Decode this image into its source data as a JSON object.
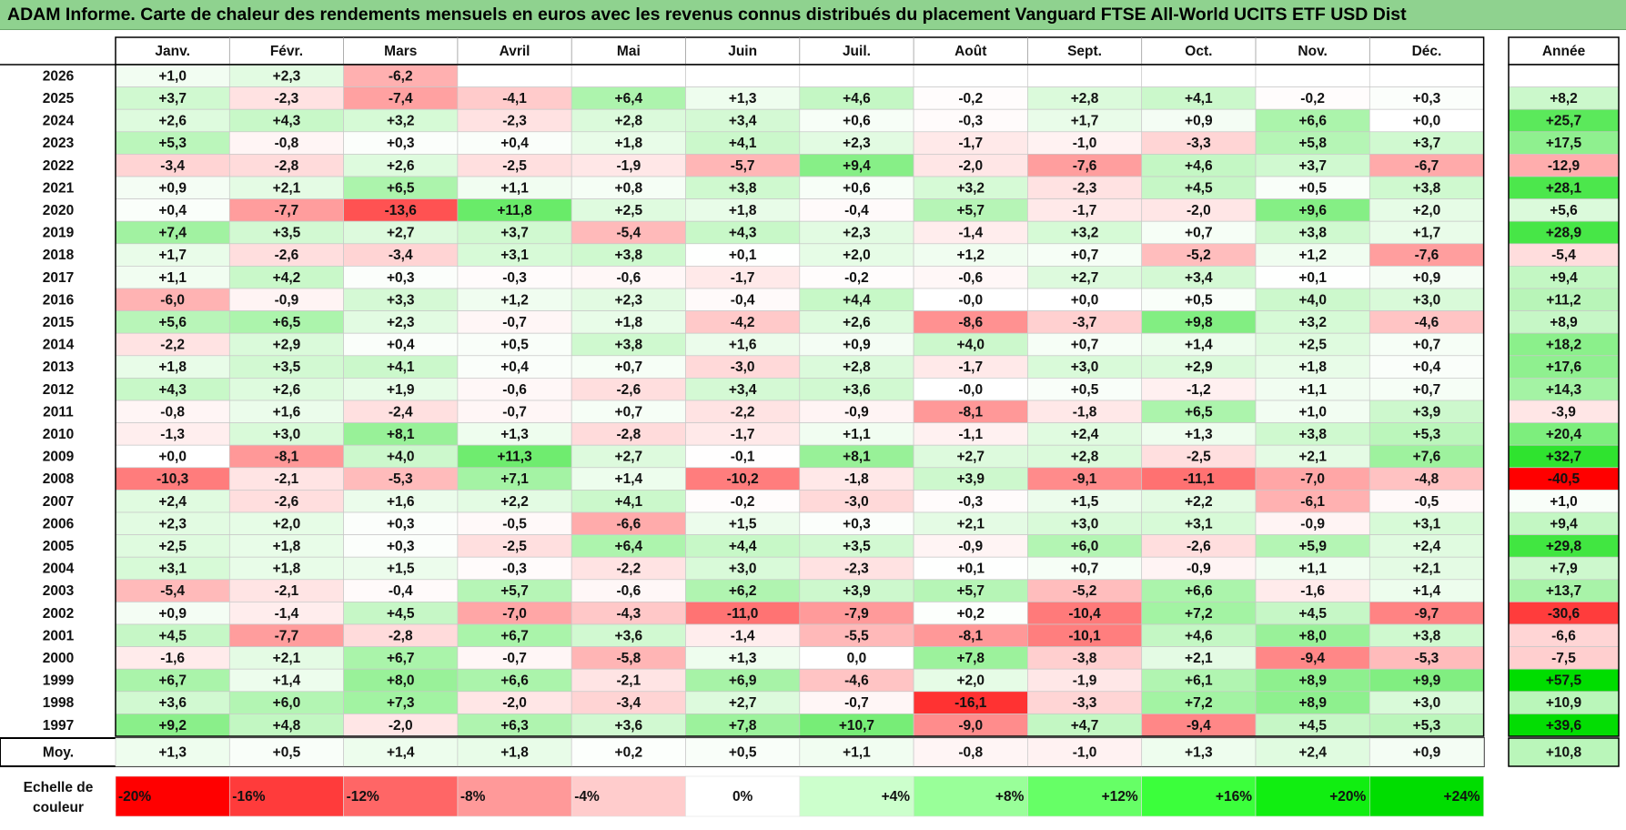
{
  "title": "ADAM Informe. Carte de chaleur des rendements mensuels en euros avec les revenus connus distribués du placement Vanguard FTSE All-World UCITS ETF USD Dist",
  "chart_data": {
    "type": "heatmap",
    "columns": [
      "Janv.",
      "Févr.",
      "Mars",
      "Avril",
      "Mai",
      "Juin",
      "Juil.",
      "Août",
      "Sept.",
      "Oct.",
      "Nov.",
      "Déc."
    ],
    "year_column": "Année",
    "rows": [
      {
        "year": "2026",
        "months": [
          "+1,0",
          "+2,3",
          "-6,2",
          "",
          "",
          "",
          "",
          "",
          "",
          "",
          "",
          ""
        ],
        "total": ""
      },
      {
        "year": "2025",
        "months": [
          "+3,7",
          "-2,3",
          "-7,4",
          "-4,1",
          "+6,4",
          "+1,3",
          "+4,6",
          "-0,2",
          "+2,8",
          "+4,1",
          "-0,2",
          "+0,3"
        ],
        "total": "+8,2"
      },
      {
        "year": "2024",
        "months": [
          "+2,6",
          "+4,3",
          "+3,2",
          "-2,3",
          "+2,8",
          "+3,4",
          "+0,6",
          "-0,3",
          "+1,7",
          "+0,9",
          "+6,6",
          "+0,0"
        ],
        "total": "+25,7"
      },
      {
        "year": "2023",
        "months": [
          "+5,3",
          "-0,8",
          "+0,3",
          "+0,4",
          "+1,8",
          "+4,1",
          "+2,3",
          "-1,7",
          "-1,0",
          "-3,3",
          "+5,8",
          "+3,7"
        ],
        "total": "+17,5"
      },
      {
        "year": "2022",
        "months": [
          "-3,4",
          "-2,8",
          "+2,6",
          "-2,5",
          "-1,9",
          "-5,7",
          "+9,4",
          "-2,0",
          "-7,6",
          "+4,6",
          "+3,7",
          "-6,7"
        ],
        "total": "-12,9"
      },
      {
        "year": "2021",
        "months": [
          "+0,9",
          "+2,1",
          "+6,5",
          "+1,1",
          "+0,8",
          "+3,8",
          "+0,6",
          "+3,2",
          "-2,3",
          "+4,5",
          "+0,5",
          "+3,8"
        ],
        "total": "+28,1"
      },
      {
        "year": "2020",
        "months": [
          "+0,4",
          "-7,7",
          "-13,6",
          "+11,8",
          "+2,5",
          "+1,8",
          "-0,4",
          "+5,7",
          "-1,7",
          "-2,0",
          "+9,6",
          "+2,0"
        ],
        "total": "+5,6"
      },
      {
        "year": "2019",
        "months": [
          "+7,4",
          "+3,5",
          "+2,7",
          "+3,7",
          "-5,4",
          "+4,3",
          "+2,3",
          "-1,4",
          "+3,2",
          "+0,7",
          "+3,8",
          "+1,7"
        ],
        "total": "+28,9"
      },
      {
        "year": "2018",
        "months": [
          "+1,7",
          "-2,6",
          "-3,4",
          "+3,1",
          "+3,8",
          "+0,1",
          "+2,0",
          "+1,2",
          "+0,7",
          "-5,2",
          "+1,2",
          "-7,6"
        ],
        "total": "-5,4"
      },
      {
        "year": "2017",
        "months": [
          "+1,1",
          "+4,2",
          "+0,3",
          "-0,3",
          "-0,6",
          "-1,7",
          "-0,2",
          "-0,6",
          "+2,7",
          "+3,4",
          "+0,1",
          "+0,9"
        ],
        "total": "+9,4"
      },
      {
        "year": "2016",
        "months": [
          "-6,0",
          "-0,9",
          "+3,3",
          "+1,2",
          "+2,3",
          "-0,4",
          "+4,4",
          "-0,0",
          "+0,0",
          "+0,5",
          "+4,0",
          "+3,0"
        ],
        "total": "+11,2"
      },
      {
        "year": "2015",
        "months": [
          "+5,6",
          "+6,5",
          "+2,3",
          "-0,7",
          "+1,8",
          "-4,2",
          "+2,6",
          "-8,6",
          "-3,7",
          "+9,8",
          "+3,2",
          "-4,6"
        ],
        "total": "+8,9"
      },
      {
        "year": "2014",
        "months": [
          "-2,2",
          "+2,9",
          "+0,4",
          "+0,5",
          "+3,8",
          "+1,6",
          "+0,9",
          "+4,0",
          "+0,7",
          "+1,4",
          "+2,5",
          "+0,7"
        ],
        "total": "+18,2"
      },
      {
        "year": "2013",
        "months": [
          "+1,8",
          "+3,5",
          "+4,1",
          "+0,4",
          "+0,7",
          "-3,0",
          "+2,8",
          "-1,7",
          "+3,0",
          "+2,9",
          "+1,8",
          "+0,4"
        ],
        "total": "+17,6"
      },
      {
        "year": "2012",
        "months": [
          "+4,3",
          "+2,6",
          "+1,9",
          "-0,6",
          "-2,6",
          "+3,4",
          "+3,6",
          "-0,0",
          "+0,5",
          "-1,2",
          "+1,1",
          "+0,7"
        ],
        "total": "+14,3"
      },
      {
        "year": "2011",
        "months": [
          "-0,8",
          "+1,6",
          "-2,4",
          "-0,7",
          "+0,7",
          "-2,2",
          "-0,9",
          "-8,1",
          "-1,8",
          "+6,5",
          "+1,0",
          "+3,9"
        ],
        "total": "-3,9"
      },
      {
        "year": "2010",
        "months": [
          "-1,3",
          "+3,0",
          "+8,1",
          "+1,3",
          "-2,8",
          "-1,7",
          "+1,1",
          "-1,1",
          "+2,4",
          "+1,3",
          "+3,8",
          "+5,3"
        ],
        "total": "+20,4"
      },
      {
        "year": "2009",
        "months": [
          "+0,0",
          "-8,1",
          "+4,0",
          "+11,3",
          "+2,7",
          "-0,1",
          "+8,1",
          "+2,7",
          "+2,8",
          "-2,5",
          "+2,1",
          "+7,6"
        ],
        "total": "+32,7"
      },
      {
        "year": "2008",
        "months": [
          "-10,3",
          "-2,1",
          "-5,3",
          "+7,1",
          "+1,4",
          "-10,2",
          "-1,8",
          "+3,9",
          "-9,1",
          "-11,1",
          "-7,0",
          "-4,8"
        ],
        "total": "-40,5"
      },
      {
        "year": "2007",
        "months": [
          "+2,4",
          "-2,6",
          "+1,6",
          "+2,2",
          "+4,1",
          "-0,2",
          "-3,0",
          "-0,3",
          "+1,5",
          "+2,2",
          "-6,1",
          "-0,5"
        ],
        "total": "+1,0"
      },
      {
        "year": "2006",
        "months": [
          "+2,3",
          "+2,0",
          "+0,3",
          "-0,5",
          "-6,6",
          "+1,5",
          "+0,3",
          "+2,1",
          "+3,0",
          "+3,1",
          "-0,9",
          "+3,1"
        ],
        "total": "+9,4"
      },
      {
        "year": "2005",
        "months": [
          "+2,5",
          "+1,8",
          "+0,3",
          "-2,5",
          "+6,4",
          "+4,4",
          "+3,5",
          "-0,9",
          "+6,0",
          "-2,6",
          "+5,9",
          "+2,4"
        ],
        "total": "+29,8"
      },
      {
        "year": "2004",
        "months": [
          "+3,1",
          "+1,8",
          "+1,5",
          "-0,3",
          "-2,2",
          "+3,0",
          "-2,3",
          "+0,1",
          "+0,7",
          "-0,9",
          "+1,1",
          "+2,1"
        ],
        "total": "+7,9"
      },
      {
        "year": "2003",
        "months": [
          "-5,4",
          "-2,1",
          "-0,4",
          "+5,7",
          "-0,6",
          "+6,2",
          "+3,9",
          "+5,7",
          "-5,2",
          "+6,6",
          "-1,6",
          "+1,4"
        ],
        "total": "+13,7"
      },
      {
        "year": "2002",
        "months": [
          "+0,9",
          "-1,4",
          "+4,5",
          "-7,0",
          "-4,3",
          "-11,0",
          "-7,9",
          "+0,2",
          "-10,4",
          "+7,2",
          "+4,5",
          "-9,7"
        ],
        "total": "-30,6"
      },
      {
        "year": "2001",
        "months": [
          "+4,5",
          "-7,7",
          "-2,8",
          "+6,7",
          "+3,6",
          "-1,4",
          "-5,5",
          "-8,1",
          "-10,1",
          "+4,6",
          "+8,0",
          "+3,8"
        ],
        "total": "-6,6"
      },
      {
        "year": "2000",
        "months": [
          "-1,6",
          "+2,1",
          "+6,7",
          "-0,7",
          "-5,8",
          "+1,3",
          "0,0",
          "+7,8",
          "-3,8",
          "+2,1",
          "-9,4",
          "-5,3"
        ],
        "total": "-7,5"
      },
      {
        "year": "1999",
        "months": [
          "+6,7",
          "+1,4",
          "+8,0",
          "+6,6",
          "-2,1",
          "+6,9",
          "-4,6",
          "+2,0",
          "-1,9",
          "+6,1",
          "+8,9",
          "+9,9"
        ],
        "total": "+57,5"
      },
      {
        "year": "1998",
        "months": [
          "+3,6",
          "+6,0",
          "+7,3",
          "-2,0",
          "-3,4",
          "+2,7",
          "-0,7",
          "-16,1",
          "-3,3",
          "+7,2",
          "+8,9",
          "+3,0"
        ],
        "total": "+10,9"
      },
      {
        "year": "1997",
        "months": [
          "+9,2",
          "+4,8",
          "-2,0",
          "+6,3",
          "+3,6",
          "+7,8",
          "+10,7",
          "-9,0",
          "+4,7",
          "-9,4",
          "+4,5",
          "+5,3"
        ],
        "total": "+39,6"
      }
    ],
    "average": {
      "label": "Moy.",
      "months": [
        "+1,3",
        "+0,5",
        "+1,4",
        "+1,8",
        "+0,2",
        "+0,5",
        "+1,1",
        "-0,8",
        "-1,0",
        "+1,3",
        "+2,4",
        "+0,9"
      ],
      "total": "+10,8"
    },
    "legend": {
      "label_lines": [
        "Echelle de",
        "couleur"
      ],
      "items": [
        {
          "label": "-20%",
          "value": -20,
          "color": "#ff0000"
        },
        {
          "label": "-16%",
          "value": -16,
          "color": "#ff3b3b"
        },
        {
          "label": "-12%",
          "value": -12,
          "color": "#ff6666"
        },
        {
          "label": "-8%",
          "value": -8,
          "color": "#ff9999"
        },
        {
          "label": "-4%",
          "value": -4,
          "color": "#ffcccc"
        },
        {
          "label": "0%",
          "value": 0,
          "color": "#ffffff"
        },
        {
          "label": "+4%",
          "value": 4,
          "color": "#ccffcc"
        },
        {
          "label": "+8%",
          "value": 8,
          "color": "#99ff99"
        },
        {
          "label": "+12%",
          "value": 12,
          "color": "#66ff66"
        },
        {
          "label": "+16%",
          "value": 16,
          "color": "#3bff3b"
        },
        {
          "label": "+20%",
          "value": 20,
          "color": "#11ee11"
        },
        {
          "label": "+24%",
          "value": 24,
          "color": "#00dd00"
        }
      ]
    },
    "colors": {
      "negative_max": "#ff0000",
      "zero": "#ffffff",
      "positive_max": "#00dd00",
      "title_bg": "#8fd28f"
    }
  }
}
